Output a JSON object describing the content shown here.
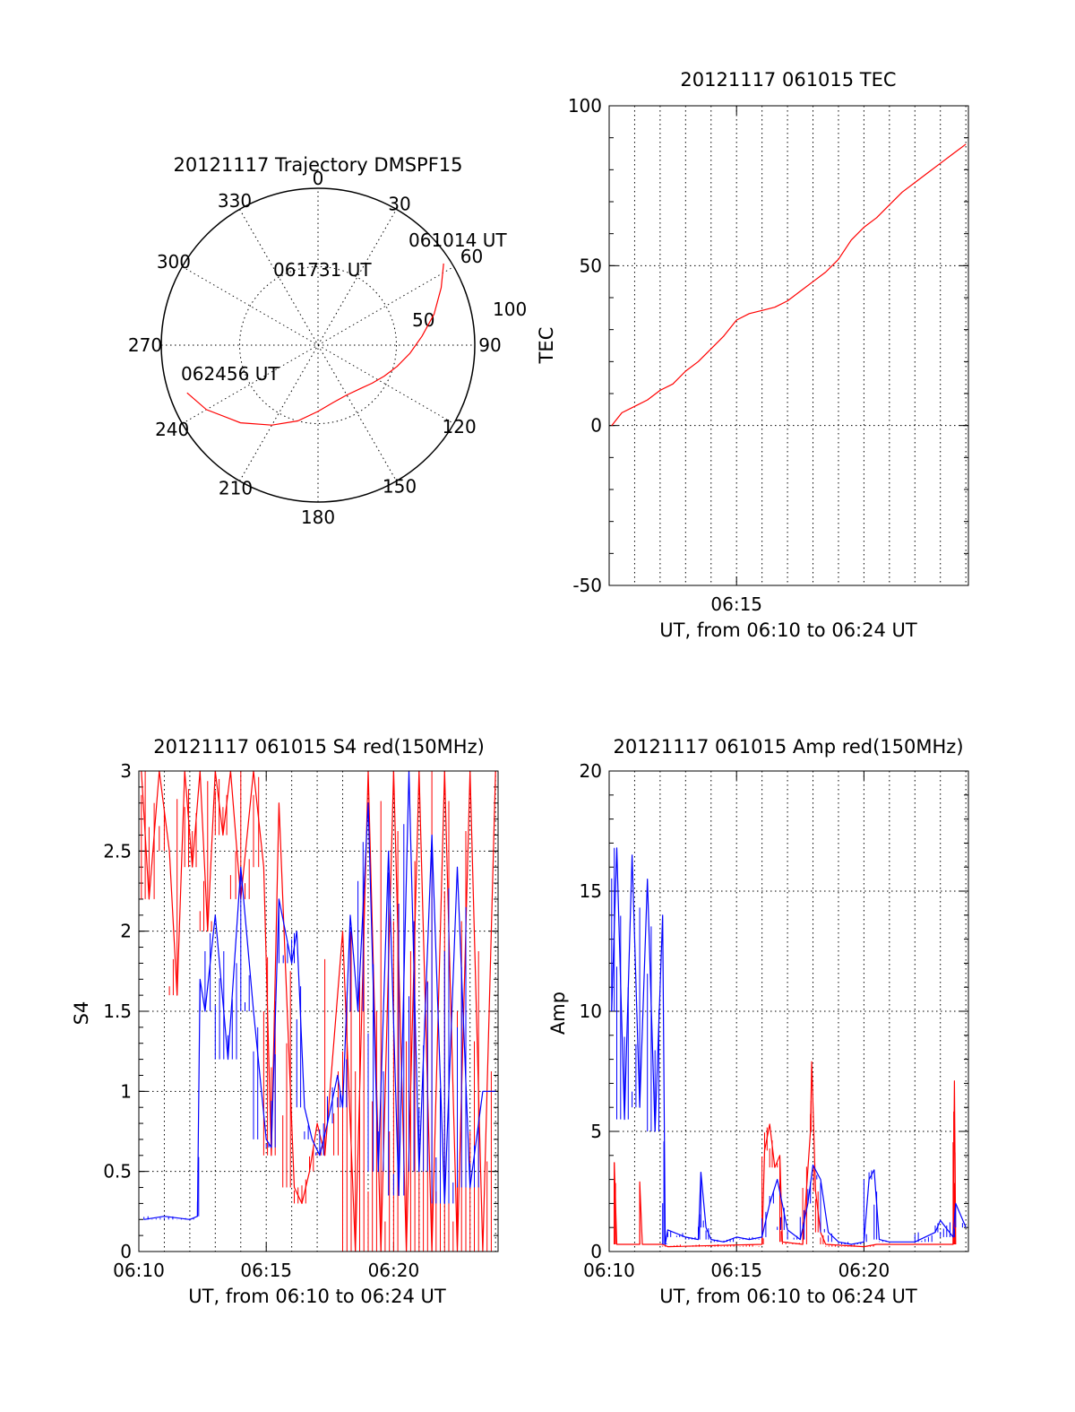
{
  "chart_data": [
    {
      "type": "scatter",
      "title": "20121117 Trajectory DMSPF15",
      "projection": "polar",
      "azimuth_labels": [
        "0",
        "30",
        "60",
        "90",
        "120",
        "150",
        "180",
        "210",
        "240",
        "270",
        "300",
        "330"
      ],
      "radius_labels": [
        "50",
        "100"
      ],
      "grid": true,
      "series": [
        {
          "color": "#ff0000",
          "azimuth": [
            57,
            65,
            75,
            85,
            95,
            105,
            115,
            125,
            135,
            150,
            165,
            180,
            195,
            210,
            225,
            240,
            250
          ],
          "elevation": [
            4,
            12,
            21,
            30,
            37,
            43,
            48,
            52,
            55,
            57,
            56,
            52,
            45,
            37,
            27,
            16,
            10
          ]
        }
      ],
      "annotations": [
        {
          "text": "061014 UT",
          "az": 57,
          "el": 4
        },
        {
          "text": "061731 UT",
          "az": 348,
          "el": 52
        },
        {
          "text": "062456 UT",
          "az": 250,
          "el": 10
        }
      ]
    },
    {
      "type": "line",
      "title": "20121117 061015 TEC",
      "xlabel": "UT, from 06:10 to 06:24 UT",
      "ylabel": "TEC",
      "xlim": [
        0,
        14.1
      ],
      "ylim": [
        -50,
        100
      ],
      "xticks": [
        {
          "t": 5,
          "label": "06:15"
        }
      ],
      "yticks": [
        -50,
        0,
        50,
        100
      ],
      "grid": true,
      "series": [
        {
          "color": "#ff0000",
          "x": [
            0.1,
            0.5,
            1.0,
            1.5,
            2.0,
            2.5,
            3.0,
            3.5,
            4.0,
            4.5,
            5.0,
            5.5,
            6.0,
            6.5,
            7.0,
            7.5,
            8.0,
            8.5,
            9.0,
            9.5,
            10.0,
            10.5,
            11.0,
            11.5,
            12.0,
            12.5,
            13.0,
            13.5,
            14.0
          ],
          "values": [
            0,
            4,
            6,
            8,
            11,
            13,
            17,
            20,
            24,
            28,
            33,
            35,
            36,
            37,
            39,
            42,
            45,
            48,
            52,
            58,
            62,
            65,
            69,
            73,
            76,
            79,
            82,
            85,
            88
          ]
        }
      ]
    },
    {
      "type": "line",
      "title": "20121117 061015 S4 red(150MHz)",
      "xlabel": "UT, from 06:10 to 06:24 UT",
      "ylabel": "S4",
      "xlim": [
        0,
        14.1
      ],
      "ylim": [
        0,
        3
      ],
      "xticks": [
        {
          "t": 0,
          "label": "06:10"
        },
        {
          "t": 5,
          "label": "06:15"
        },
        {
          "t": 10,
          "label": "06:20"
        }
      ],
      "yticks": [
        {
          "v": 0,
          "label": "0"
        },
        {
          "v": 0.5,
          "label": "0.5"
        },
        {
          "v": 1,
          "label": "1"
        },
        {
          "v": 1.5,
          "label": "1.5"
        },
        {
          "v": 2,
          "label": "2"
        },
        {
          "v": 2.5,
          "label": "2.5"
        },
        {
          "v": 3,
          "label": "3"
        }
      ],
      "grid": true,
      "series": [
        {
          "color": "#ff0000",
          "x": [
            0.1,
            0.4,
            0.8,
            1.2,
            1.5,
            1.8,
            2.1,
            2.4,
            2.7,
            3.0,
            3.3,
            3.6,
            4.0,
            4.5,
            4.9,
            5.2,
            5.5,
            6.1,
            6.4,
            6.7,
            7.0,
            7.3,
            8.0,
            8.5,
            9.0,
            9.5,
            10.0,
            10.5,
            11.0,
            11.5,
            12.0,
            12.5,
            13.0,
            13.5,
            14.0
          ],
          "values": [
            3.0,
            2.2,
            3.0,
            2.5,
            1.6,
            3.0,
            2.4,
            3.0,
            2.0,
            3.0,
            2.6,
            3.0,
            2.2,
            3.0,
            2.4,
            0.6,
            2.8,
            0.4,
            0.3,
            0.5,
            0.8,
            0.6,
            2.0,
            0.0,
            3.0,
            0.0,
            3.0,
            0.0,
            3.0,
            0.0,
            3.0,
            0.0,
            3.0,
            0.0,
            3.0
          ]
        },
        {
          "color": "#0000ff",
          "x": [
            0.2,
            1.0,
            2.0,
            2.3,
            2.4,
            2.6,
            3.0,
            3.5,
            4.0,
            4.5,
            5.0,
            5.2,
            5.5,
            6.0,
            6.2,
            6.5,
            6.8,
            7.1,
            7.4,
            7.8,
            8.0,
            8.3,
            8.6,
            9.0,
            9.4,
            9.8,
            10.2,
            10.6,
            11.0,
            11.5,
            12.0,
            12.5,
            13.0,
            13.5,
            14.0
          ],
          "values": [
            0.2,
            0.22,
            0.2,
            0.22,
            1.7,
            1.5,
            2.1,
            1.2,
            2.4,
            1.5,
            0.7,
            0.65,
            2.2,
            1.8,
            2.0,
            0.9,
            0.7,
            0.6,
            0.8,
            1.1,
            0.9,
            2.1,
            1.5,
            2.8,
            0.5,
            2.5,
            0.35,
            3.0,
            0.5,
            2.6,
            0.3,
            2.4,
            0.4,
            1.0,
            1.0
          ]
        }
      ]
    },
    {
      "type": "line",
      "title": "20121117 061015 Amp red(150MHz)",
      "xlabel": "UT, from 06:10 to 06:24 UT",
      "ylabel": "Amp",
      "xlim": [
        0,
        14.1
      ],
      "ylim": [
        0,
        20
      ],
      "xticks": [
        {
          "t": 0,
          "label": "06:10"
        },
        {
          "t": 5,
          "label": "06:15"
        },
        {
          "t": 10,
          "label": "06:20"
        }
      ],
      "yticks": [
        0,
        5,
        10,
        15,
        20
      ],
      "grid": true,
      "series": [
        {
          "color": "#ff0000",
          "x": [
            0.2,
            0.2,
            0.3,
            1.2,
            1.2,
            1.3,
            2.1,
            2.3,
            6.0,
            6.1,
            6.3,
            6.5,
            6.7,
            6.8,
            7.6,
            7.9,
            7.95,
            8.1,
            8.3,
            8.5,
            10.0,
            10.5,
            13.5,
            13.55,
            13.6
          ],
          "values": [
            0.3,
            3.7,
            0.3,
            0.3,
            2.9,
            0.3,
            0.3,
            0.2,
            0.3,
            4.2,
            5.3,
            3.5,
            4.0,
            0.4,
            0.3,
            5.0,
            7.9,
            2.5,
            0.8,
            0.3,
            0.2,
            0.3,
            0.3,
            7.1,
            0.3
          ]
        },
        {
          "color": "#0000ff",
          "x": [
            0.1,
            0.3,
            0.6,
            0.9,
            1.2,
            1.5,
            1.8,
            2.1,
            2.2,
            2.3,
            3.0,
            3.5,
            3.6,
            3.8,
            4.0,
            4.5,
            5.0,
            5.5,
            6.0,
            6.3,
            6.6,
            7.0,
            7.5,
            7.8,
            8.0,
            8.3,
            8.6,
            9.0,
            9.5,
            10.0,
            10.2,
            10.4,
            10.6,
            11.0,
            12.0,
            12.8,
            13.0,
            13.5,
            13.6,
            14.0
          ],
          "values": [
            10,
            16.8,
            5.5,
            16.5,
            6.0,
            15.5,
            5.0,
            14.0,
            0.3,
            0.9,
            0.6,
            0.5,
            3.3,
            1.0,
            0.5,
            0.4,
            0.6,
            0.5,
            0.6,
            2.0,
            3.0,
            0.9,
            0.5,
            2.0,
            3.6,
            3.0,
            0.8,
            0.4,
            0.3,
            0.4,
            3.0,
            3.4,
            0.5,
            0.4,
            0.4,
            0.8,
            1.3,
            0.6,
            2.0,
            1.0
          ]
        }
      ]
    }
  ]
}
